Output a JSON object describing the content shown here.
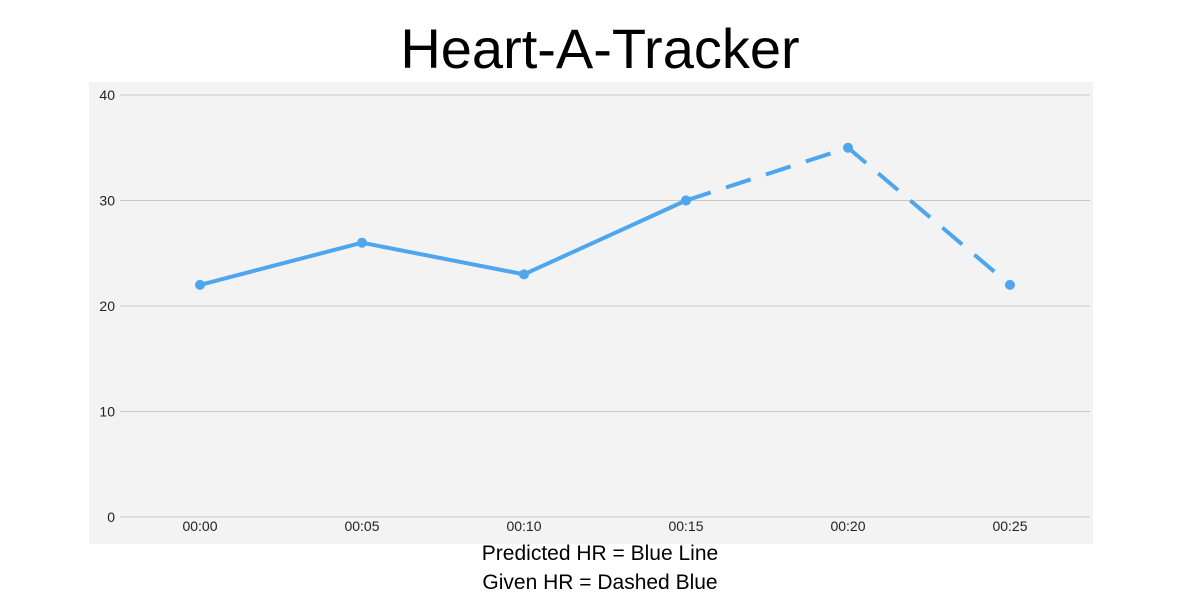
{
  "chart_data": {
    "type": "line",
    "title": "Heart-A-Tracker",
    "categories": [
      "00:00",
      "00:05",
      "00:10",
      "00:15",
      "00:20",
      "00:25"
    ],
    "series": [
      {
        "values": [
          22,
          26,
          23,
          30,
          null,
          null
        ],
        "line_style": "solid",
        "color": "#4da6ee"
      },
      {
        "values": [
          null,
          null,
          null,
          30,
          35,
          22
        ],
        "line_style": "dashed",
        "color": "#4da6ee"
      }
    ],
    "ylim": [
      0,
      40
    ],
    "yticks": [
      0,
      10,
      20,
      30,
      40
    ],
    "grid": true,
    "xlabel": "",
    "ylabel": ""
  },
  "captions": {
    "line1": "Predicted HR = Blue Line",
    "line2": "Given HR = Dashed Blue"
  }
}
